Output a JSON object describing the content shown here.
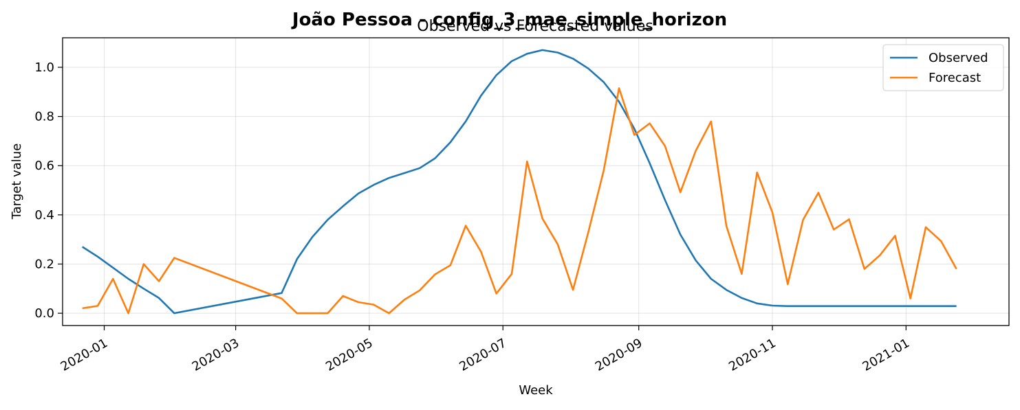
{
  "chart_data": {
    "type": "line",
    "suptitle": "João Pessoa - config_3_mae_simple_horizon",
    "title": "Observed vs Forecasted values",
    "xlabel": "Week",
    "ylabel": "Target value",
    "x_ticks": [
      "2020-01-01",
      "2020-03-01",
      "2020-05-01",
      "2020-07-01",
      "2020-09-01",
      "2020-11-01",
      "2021-01-01"
    ],
    "x_tick_labels": [
      "2020-01",
      "2020-03",
      "2020-05",
      "2020-07",
      "2020-09",
      "2020-11",
      "2021-01"
    ],
    "y_ticks": [
      0.0,
      0.2,
      0.4,
      0.6,
      0.8,
      1.0
    ],
    "y_tick_labels": [
      "0.0",
      "0.2",
      "0.4",
      "0.6",
      "0.8",
      "1.0"
    ],
    "xlim": [
      "2019-12-13",
      "2021-02-17"
    ],
    "ylim": [
      -0.05,
      1.12
    ],
    "grid": true,
    "legend_position": "top-right",
    "series": [
      {
        "name": "Observed",
        "color": "#1f77b4",
        "points": [
          [
            "2019-12-22",
            0.27
          ],
          [
            "2019-12-29",
            0.23
          ],
          [
            "2020-01-05",
            0.185
          ],
          [
            "2020-01-12",
            0.14
          ],
          [
            "2020-01-19",
            0.1
          ],
          [
            "2020-01-26",
            0.062
          ],
          [
            "2020-02-02",
            0.0
          ],
          [
            "2020-03-22",
            0.082
          ],
          [
            "2020-03-29",
            0.22
          ],
          [
            "2020-04-05",
            0.31
          ],
          [
            "2020-04-12",
            0.38
          ],
          [
            "2020-04-19",
            0.435
          ],
          [
            "2020-04-26",
            0.487
          ],
          [
            "2020-05-03",
            0.522
          ],
          [
            "2020-05-10",
            0.55
          ],
          [
            "2020-05-17",
            0.57
          ],
          [
            "2020-05-24",
            0.59
          ],
          [
            "2020-05-31",
            0.63
          ],
          [
            "2020-06-07",
            0.695
          ],
          [
            "2020-06-14",
            0.78
          ],
          [
            "2020-06-21",
            0.885
          ],
          [
            "2020-06-28",
            0.968
          ],
          [
            "2020-07-05",
            1.025
          ],
          [
            "2020-07-12",
            1.055
          ],
          [
            "2020-07-19",
            1.07
          ],
          [
            "2020-07-26",
            1.06
          ],
          [
            "2020-08-02",
            1.035
          ],
          [
            "2020-08-09",
            0.995
          ],
          [
            "2020-08-16",
            0.94
          ],
          [
            "2020-08-23",
            0.86
          ],
          [
            "2020-08-30",
            0.75
          ],
          [
            "2020-09-06",
            0.61
          ],
          [
            "2020-09-13",
            0.46
          ],
          [
            "2020-09-20",
            0.32
          ],
          [
            "2020-09-27",
            0.215
          ],
          [
            "2020-10-04",
            0.14
          ],
          [
            "2020-10-11",
            0.095
          ],
          [
            "2020-10-18",
            0.062
          ],
          [
            "2020-10-25",
            0.04
          ],
          [
            "2020-11-01",
            0.031
          ],
          [
            "2020-11-08",
            0.029
          ],
          [
            "2020-11-15",
            0.029
          ],
          [
            "2020-11-22",
            0.029
          ],
          [
            "2020-11-29",
            0.029
          ],
          [
            "2020-12-06",
            0.029
          ],
          [
            "2020-12-13",
            0.029
          ],
          [
            "2020-12-20",
            0.029
          ],
          [
            "2020-12-27",
            0.029
          ],
          [
            "2021-01-03",
            0.029
          ],
          [
            "2021-01-10",
            0.029
          ],
          [
            "2021-01-17",
            0.029
          ],
          [
            "2021-01-24",
            0.029
          ]
        ]
      },
      {
        "name": "Forecast",
        "color": "#ff7f0e",
        "points": [
          [
            "2019-12-22",
            0.02
          ],
          [
            "2019-12-29",
            0.03
          ],
          [
            "2020-01-05",
            0.14
          ],
          [
            "2020-01-12",
            0.0
          ],
          [
            "2020-01-19",
            0.2
          ],
          [
            "2020-01-26",
            0.13
          ],
          [
            "2020-02-02",
            0.225
          ],
          [
            "2020-03-22",
            0.06
          ],
          [
            "2020-03-29",
            0.0
          ],
          [
            "2020-04-05",
            0.0
          ],
          [
            "2020-04-12",
            0.0
          ],
          [
            "2020-04-19",
            0.07
          ],
          [
            "2020-04-26",
            0.045
          ],
          [
            "2020-05-03",
            0.035
          ],
          [
            "2020-05-10",
            0.0
          ],
          [
            "2020-05-17",
            0.055
          ],
          [
            "2020-05-24",
            0.093
          ],
          [
            "2020-05-31",
            0.158
          ],
          [
            "2020-06-07",
            0.195
          ],
          [
            "2020-06-14",
            0.356
          ],
          [
            "2020-06-21",
            0.25
          ],
          [
            "2020-06-28",
            0.08
          ],
          [
            "2020-07-05",
            0.16
          ],
          [
            "2020-07-12",
            0.617
          ],
          [
            "2020-07-19",
            0.385
          ],
          [
            "2020-07-26",
            0.28
          ],
          [
            "2020-08-02",
            0.095
          ],
          [
            "2020-08-09",
            0.33
          ],
          [
            "2020-08-16",
            0.58
          ],
          [
            "2020-08-23",
            0.915
          ],
          [
            "2020-08-30",
            0.725
          ],
          [
            "2020-09-06",
            0.772
          ],
          [
            "2020-09-13",
            0.68
          ],
          [
            "2020-09-20",
            0.492
          ],
          [
            "2020-09-27",
            0.66
          ],
          [
            "2020-10-04",
            0.78
          ],
          [
            "2020-10-11",
            0.355
          ],
          [
            "2020-10-18",
            0.16
          ],
          [
            "2020-10-25",
            0.572
          ],
          [
            "2020-11-01",
            0.41
          ],
          [
            "2020-11-08",
            0.118
          ],
          [
            "2020-11-15",
            0.38
          ],
          [
            "2020-11-22",
            0.49
          ],
          [
            "2020-11-29",
            0.34
          ],
          [
            "2020-12-06",
            0.382
          ],
          [
            "2020-12-13",
            0.18
          ],
          [
            "2020-12-20",
            0.235
          ],
          [
            "2020-12-27",
            0.315
          ],
          [
            "2021-01-03",
            0.06
          ],
          [
            "2021-01-10",
            0.35
          ],
          [
            "2021-01-17",
            0.293
          ],
          [
            "2021-01-24",
            0.18
          ]
        ]
      }
    ]
  }
}
